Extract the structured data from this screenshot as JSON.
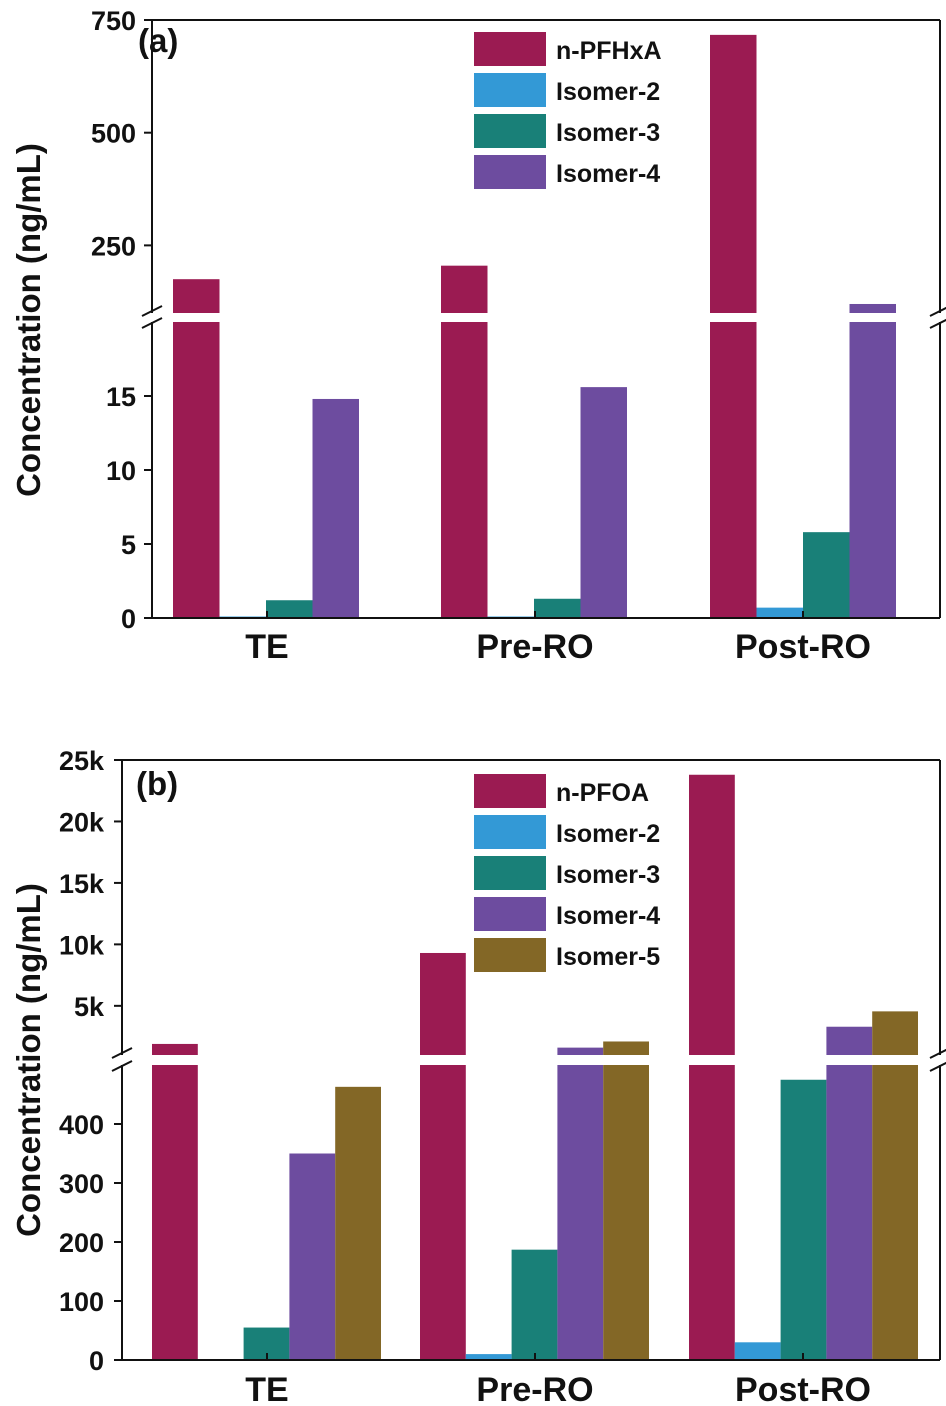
{
  "chart_data": [
    {
      "type": "bar",
      "panel_label": "(a)",
      "ylabel": "Concentration (ng/mL)",
      "categories": [
        "TE",
        "Pre-RO",
        "Post-RO"
      ],
      "axis_break": {
        "lower_range": [
          0,
          20
        ],
        "upper_range": [
          100,
          750
        ]
      },
      "yticks_lower": [
        "0",
        "5",
        "10",
        "15"
      ],
      "yticks_lower_values": [
        0,
        5,
        10,
        15
      ],
      "yticks_upper": [
        "250",
        "500",
        "750"
      ],
      "yticks_upper_values": [
        250,
        500,
        750
      ],
      "legend_position": "top-center",
      "series": [
        {
          "name": "n-PFHxA",
          "color": "#9B1B52",
          "values": [
            175,
            205,
            717
          ]
        },
        {
          "name": "Isomer-2",
          "color": "#3399D6",
          "values": [
            0.1,
            0.1,
            0.7
          ]
        },
        {
          "name": "Isomer-3",
          "color": "#198078",
          "values": [
            1.2,
            1.3,
            5.8
          ]
        },
        {
          "name": "Isomer-4",
          "color": "#6D4C9F",
          "values": [
            14.8,
            15.6,
            120
          ]
        }
      ]
    },
    {
      "type": "bar",
      "panel_label": "(b)",
      "ylabel": "Concentration (ng/mL)",
      "categories": [
        "TE",
        "Pre-RO",
        "Post-RO"
      ],
      "axis_break": {
        "lower_range": [
          0,
          500
        ],
        "upper_range": [
          1000,
          25000
        ]
      },
      "yticks_lower": [
        "0",
        "100",
        "200",
        "300",
        "400"
      ],
      "yticks_lower_values": [
        0,
        100,
        200,
        300,
        400
      ],
      "yticks_upper": [
        "5k",
        "10k",
        "15k",
        "20k",
        "25k"
      ],
      "yticks_upper_values": [
        5000,
        10000,
        15000,
        20000,
        25000
      ],
      "legend_position": "top-center",
      "series": [
        {
          "name": "n-PFOA",
          "color": "#9B1B52",
          "values": [
            1900,
            9300,
            23800
          ]
        },
        {
          "name": "Isomer-2",
          "color": "#3399D6",
          "values": [
            0,
            10,
            30
          ]
        },
        {
          "name": "Isomer-3",
          "color": "#198078",
          "values": [
            55,
            187,
            475
          ]
        },
        {
          "name": "Isomer-4",
          "color": "#6D4C9F",
          "values": [
            350,
            1600,
            3300
          ]
        },
        {
          "name": "Isomer-5",
          "color": "#836726",
          "values": [
            463,
            2100,
            4550
          ]
        }
      ]
    }
  ]
}
